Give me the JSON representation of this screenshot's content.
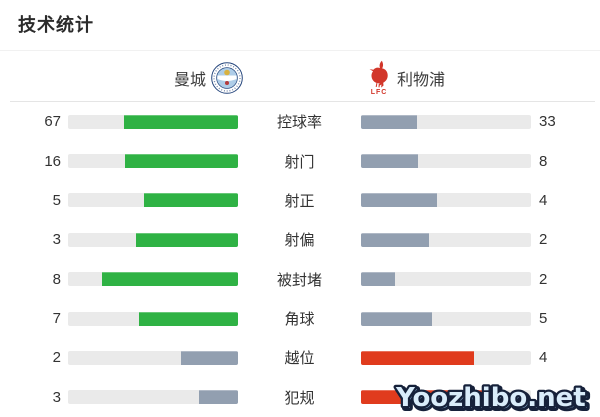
{
  "title": "技术统计",
  "teams": {
    "home": {
      "name": "曼城"
    },
    "away": {
      "name": "利物浦",
      "badge_caption": "LFC"
    }
  },
  "colors": {
    "home_lead": "#2fb244",
    "away_lead": "#e03b1d",
    "neutral": "#929fb0",
    "track": "#eaeaea"
  },
  "chart_data": {
    "type": "bar",
    "title": "技术统计",
    "categories": [
      "控球率",
      "射门",
      "射正",
      "射偏",
      "被封堵",
      "角球",
      "越位",
      "犯规"
    ],
    "series": [
      {
        "name": "曼城",
        "values": [
          67,
          16,
          5,
          3,
          8,
          7,
          2,
          3
        ]
      },
      {
        "name": "利物浦",
        "values": [
          33,
          8,
          4,
          2,
          2,
          5,
          4,
          10
        ]
      }
    ],
    "layout": "paired horizontal bars, fill length = value / (home+away), home bars right-anchored, away bars left-anchored, leading home bar green, leading away bar red, trailing bar gray"
  },
  "watermark": "Yoozhibo.net"
}
